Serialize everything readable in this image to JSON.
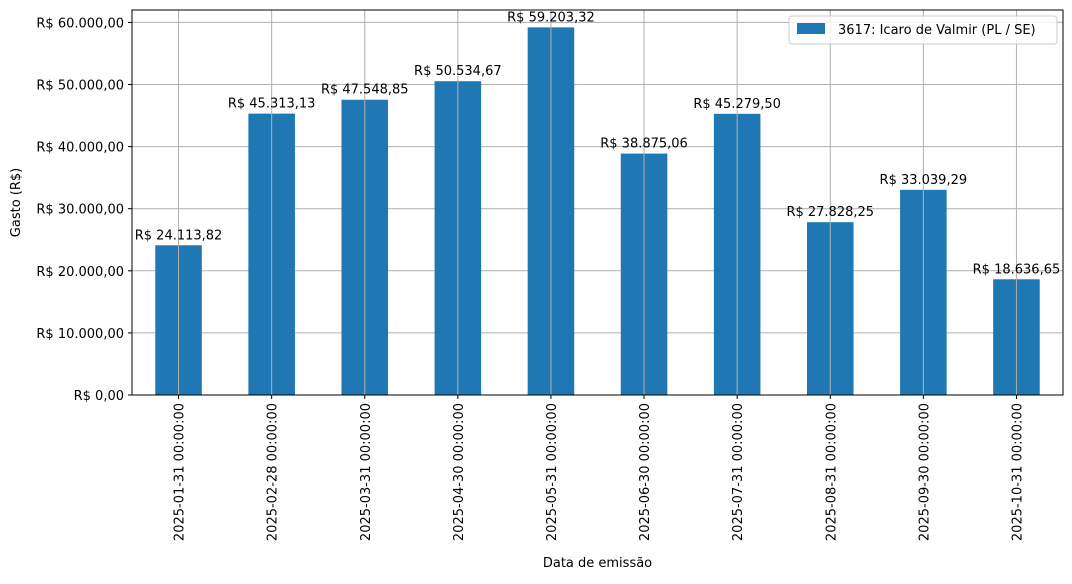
{
  "chart_data": {
    "type": "bar",
    "title": "",
    "xlabel": "Data de emissão",
    "ylabel": "Gasto (R$)",
    "ylim": [
      0,
      62000
    ],
    "yticks": [
      0,
      10000,
      20000,
      30000,
      40000,
      50000,
      60000
    ],
    "ytick_labels": [
      "R$ 0,00",
      "R$ 10.000,00",
      "R$ 20.000,00",
      "R$ 30.000,00",
      "R$ 40.000,00",
      "R$ 50.000,00",
      "R$ 60.000,00"
    ],
    "grid": true,
    "legend_position": "top-right",
    "categories": [
      "2025-01-31 00:00:00",
      "2025-02-28 00:00:00",
      "2025-03-31 00:00:00",
      "2025-04-30 00:00:00",
      "2025-05-31 00:00:00",
      "2025-06-30 00:00:00",
      "2025-07-31 00:00:00",
      "2025-08-31 00:00:00",
      "2025-09-30 00:00:00",
      "2025-10-31 00:00:00"
    ],
    "series": [
      {
        "name": "3617: Icaro de Valmir (PL / SE)",
        "color": "#1f77b4",
        "values": [
          24113.82,
          45313.13,
          47548.85,
          50534.67,
          59203.32,
          38875.06,
          45279.5,
          27828.25,
          33039.29,
          18636.65
        ],
        "data_labels": [
          "R$ 24.113,82",
          "R$ 45.313,13",
          "R$ 47.548,85",
          "R$ 50.534,67",
          "R$ 59.203,32",
          "R$ 38.875,06",
          "R$ 45.279,50",
          "R$ 27.828,25",
          "R$ 33.039,29",
          "R$ 18.636,65"
        ]
      }
    ]
  }
}
